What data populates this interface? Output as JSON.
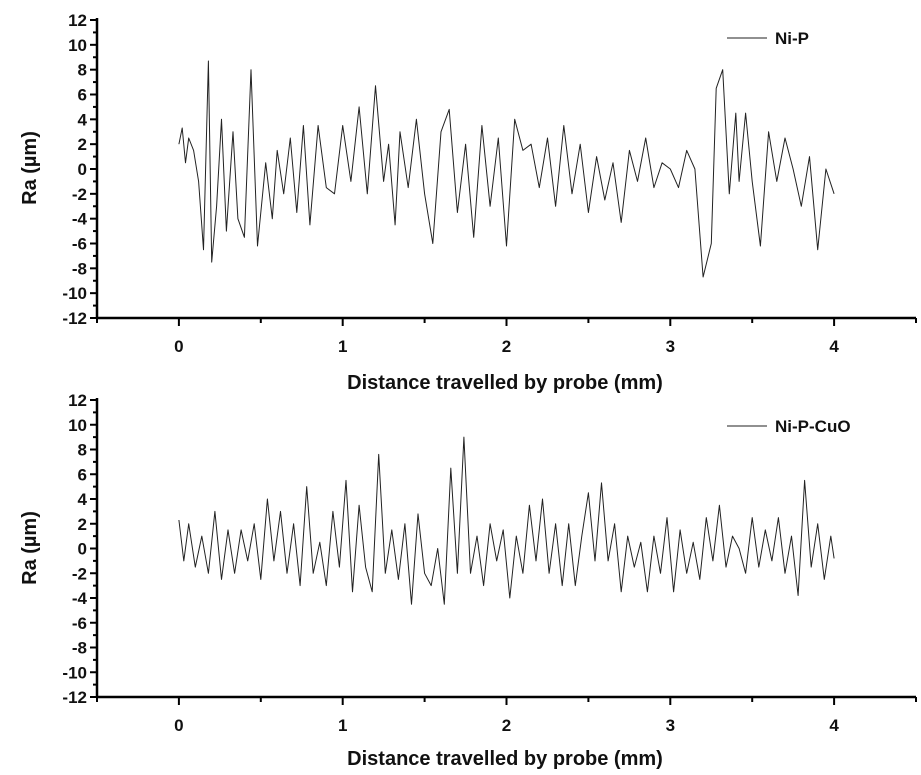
{
  "chart_data": [
    {
      "type": "line",
      "xlabel": "Distance travelled by probe (mm)",
      "ylabel": "Ra (µm)",
      "xlim": [
        -0.5,
        4.5
      ],
      "ylim": [
        -12,
        12
      ],
      "xticks": [
        "0",
        "1",
        "2",
        "3",
        "4"
      ],
      "yticks": [
        "-12",
        "-10",
        "-8",
        "-6",
        "-4",
        "-2",
        "0",
        "2",
        "4",
        "6",
        "8",
        "10",
        "12"
      ],
      "legend_position": "top-right",
      "line_color": "#222222",
      "series": [
        {
          "name": "Ni-P",
          "x": [
            0,
            0.02,
            0.04,
            0.06,
            0.09,
            0.12,
            0.15,
            0.18,
            0.2,
            0.23,
            0.26,
            0.29,
            0.33,
            0.36,
            0.4,
            0.44,
            0.48,
            0.53,
            0.57,
            0.6,
            0.64,
            0.68,
            0.72,
            0.76,
            0.8,
            0.85,
            0.9,
            0.95,
            1.0,
            1.05,
            1.1,
            1.15,
            1.2,
            1.25,
            1.28,
            1.32,
            1.35,
            1.4,
            1.45,
            1.5,
            1.55,
            1.6,
            1.65,
            1.7,
            1.75,
            1.8,
            1.85,
            1.9,
            1.95,
            2.0,
            2.05,
            2.1,
            2.15,
            2.2,
            2.25,
            2.3,
            2.35,
            2.4,
            2.45,
            2.5,
            2.55,
            2.6,
            2.65,
            2.7,
            2.75,
            2.8,
            2.85,
            2.9,
            2.95,
            3.0,
            3.05,
            3.1,
            3.15,
            3.2,
            3.25,
            3.28,
            3.32,
            3.36,
            3.4,
            3.42,
            3.46,
            3.5,
            3.55,
            3.6,
            3.65,
            3.7,
            3.75,
            3.8,
            3.85,
            3.9,
            3.95,
            4.0
          ],
          "y": [
            2,
            3.3,
            0.5,
            2.5,
            1.5,
            -1,
            -6.5,
            8.7,
            -7.5,
            -3,
            4,
            -5,
            3,
            -4,
            -5.5,
            8,
            -6.2,
            0.5,
            -4,
            1.5,
            -2,
            2.5,
            -3.5,
            3.5,
            -4.5,
            3.5,
            -1.5,
            -2,
            3.5,
            -1,
            5,
            -2,
            6.7,
            -1,
            2,
            -4.5,
            3,
            -1.5,
            4,
            -2,
            -6,
            3,
            4.8,
            -3.5,
            2,
            -5.5,
            3.5,
            -3,
            2.5,
            -6.2,
            4,
            1.5,
            2,
            -1.5,
            2.5,
            -3,
            3.5,
            -2,
            2,
            -3.5,
            1,
            -2.5,
            0.5,
            -4.3,
            1.5,
            -1,
            2.5,
            -1.5,
            0.5,
            0,
            -1.5,
            1.5,
            0,
            -8.7,
            -6,
            6.5,
            8,
            -2,
            4.5,
            -1,
            4.5,
            -1,
            -6.2,
            3,
            -1,
            2.5,
            0,
            -3,
            1,
            -6.5,
            0,
            -2
          ]
        }
      ]
    },
    {
      "type": "line",
      "xlabel": "Distance travelled by probe (mm)",
      "ylabel": "Ra (µm)",
      "xlim": [
        -0.5,
        4.5
      ],
      "ylim": [
        -12,
        12
      ],
      "xticks": [
        "0",
        "1",
        "2",
        "3",
        "4"
      ],
      "yticks": [
        "-12",
        "-10",
        "-8",
        "-6",
        "-4",
        "-2",
        "0",
        "2",
        "4",
        "6",
        "8",
        "10",
        "12"
      ],
      "legend_position": "top-right",
      "line_color": "#222222",
      "series": [
        {
          "name": "Ni-P-CuO",
          "x": [
            0,
            0.03,
            0.06,
            0.1,
            0.14,
            0.18,
            0.22,
            0.26,
            0.3,
            0.34,
            0.38,
            0.42,
            0.46,
            0.5,
            0.54,
            0.58,
            0.62,
            0.66,
            0.7,
            0.74,
            0.78,
            0.82,
            0.86,
            0.9,
            0.94,
            0.98,
            1.02,
            1.06,
            1.1,
            1.14,
            1.18,
            1.22,
            1.26,
            1.3,
            1.34,
            1.38,
            1.42,
            1.46,
            1.5,
            1.54,
            1.58,
            1.62,
            1.66,
            1.7,
            1.74,
            1.78,
            1.82,
            1.86,
            1.9,
            1.94,
            1.98,
            2.02,
            2.06,
            2.1,
            2.14,
            2.18,
            2.22,
            2.26,
            2.3,
            2.34,
            2.38,
            2.42,
            2.46,
            2.5,
            2.54,
            2.58,
            2.62,
            2.66,
            2.7,
            2.74,
            2.78,
            2.82,
            2.86,
            2.9,
            2.94,
            2.98,
            3.02,
            3.06,
            3.1,
            3.14,
            3.18,
            3.22,
            3.26,
            3.3,
            3.34,
            3.38,
            3.42,
            3.46,
            3.5,
            3.54,
            3.58,
            3.62,
            3.66,
            3.7,
            3.74,
            3.78,
            3.82,
            3.86,
            3.9,
            3.94,
            3.98,
            4.0
          ],
          "y": [
            2.3,
            -1,
            2,
            -1.5,
            1,
            -2,
            3,
            -2.5,
            1.5,
            -2,
            1.5,
            -1,
            2,
            -2.5,
            4,
            -1,
            3,
            -2,
            2,
            -3,
            5,
            -2,
            0.5,
            -3,
            3,
            -1.5,
            5.5,
            -3.5,
            3.5,
            -1.5,
            -3.5,
            7.6,
            -2,
            1.5,
            -2.5,
            2,
            -4.5,
            2.8,
            -2,
            -3,
            0,
            -4.5,
            6.5,
            -2,
            9,
            -2,
            1,
            -3,
            2,
            -1,
            1.5,
            -4,
            1,
            -2,
            3.5,
            -1,
            4,
            -2,
            2,
            -3,
            2,
            -3,
            1,
            4.5,
            -1,
            5.3,
            -1,
            2,
            -3.5,
            1,
            -1.5,
            0.5,
            -3.5,
            1,
            -2,
            2.5,
            -3.5,
            1.5,
            -2,
            0.5,
            -2.5,
            2.5,
            -1,
            3.5,
            -1.5,
            1,
            0,
            -2,
            2.5,
            -1.5,
            1.5,
            -1,
            2.5,
            -2,
            1,
            -3.8,
            5.5,
            -1.5,
            2,
            -2.5,
            1,
            -0.8
          ]
        }
      ]
    }
  ]
}
